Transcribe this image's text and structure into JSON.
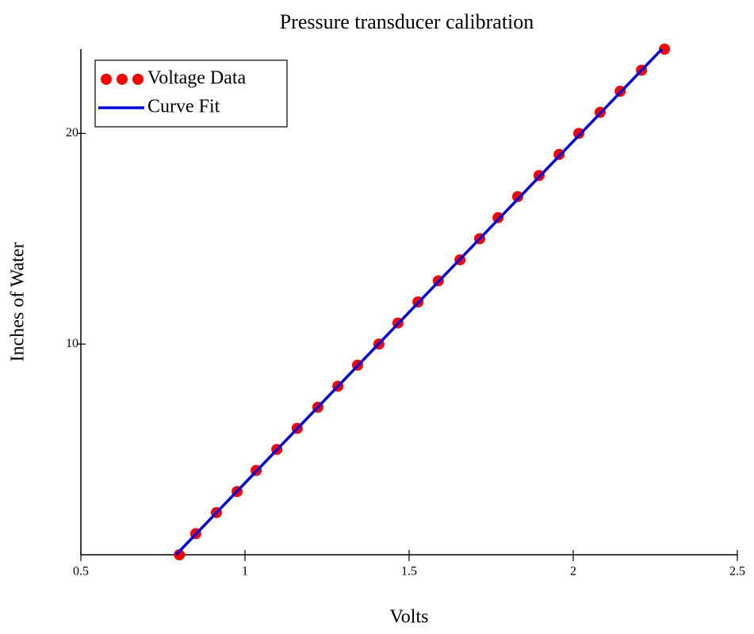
{
  "chart_data": {
    "type": "scatter",
    "title": "Pressure transducer calibration",
    "x_label": "Volts",
    "y_label": "Inches of Water",
    "xlim": [
      0.5,
      2.5
    ],
    "ylim": [
      0,
      24
    ],
    "xticks": [
      0.5,
      1,
      1.5,
      2,
      2.5
    ],
    "yticks": [
      10,
      20
    ],
    "legend": "upper left",
    "series": [
      {
        "name": "Voltage Data",
        "type": "scatter",
        "color": "#ff0000",
        "x": [
          0.8,
          0.85,
          0.913,
          0.976,
          1.034,
          1.097,
          1.159,
          1.222,
          1.283,
          1.343,
          1.408,
          1.466,
          1.527,
          1.589,
          1.655,
          1.715,
          1.771,
          1.831,
          1.896,
          1.957,
          2.017,
          2.082,
          2.143,
          2.208,
          2.278
        ],
        "values": [
          0,
          1,
          2,
          3,
          4,
          5,
          6,
          7,
          8,
          9,
          10,
          11,
          12,
          13,
          14,
          15,
          16,
          17,
          18,
          19,
          20,
          21,
          22,
          23,
          24
        ]
      },
      {
        "name": "Curve Fit",
        "type": "line",
        "color": "#0000e0",
        "x": [
          0.79,
          2.27
        ],
        "values": [
          0,
          24
        ]
      }
    ]
  }
}
